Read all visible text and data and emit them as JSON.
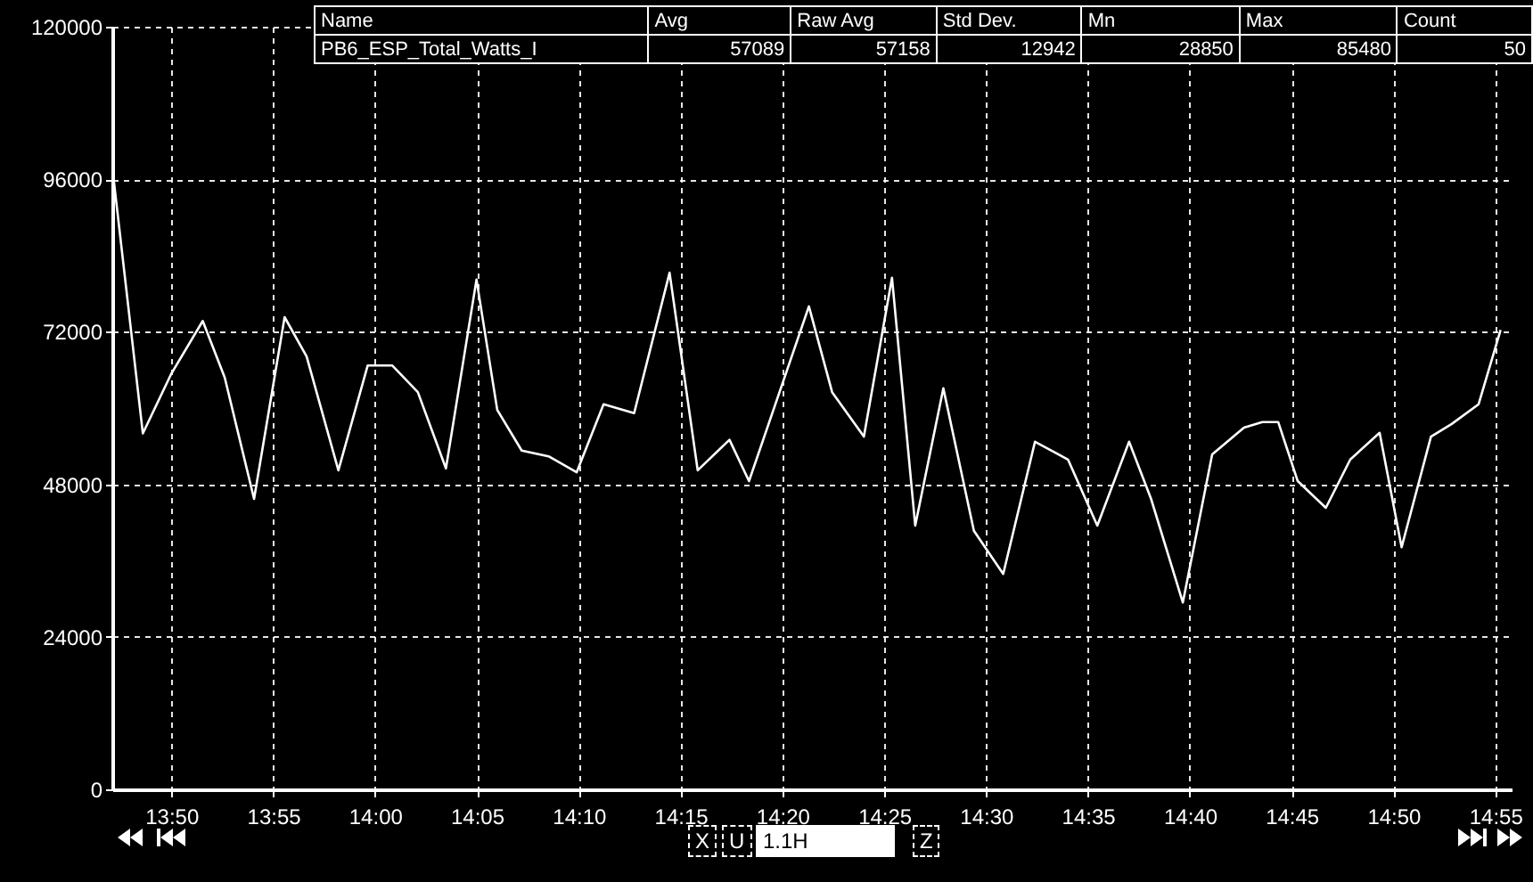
{
  "chart_data": {
    "type": "line",
    "x": [
      13.786,
      13.81,
      13.833,
      13.859,
      13.877,
      13.901,
      13.926,
      13.944,
      13.97,
      13.994,
      14.014,
      14.035,
      14.058,
      14.083,
      14.1,
      14.12,
      14.142,
      14.165,
      14.187,
      14.212,
      14.241,
      14.264,
      14.29,
      14.306,
      14.355,
      14.374,
      14.4,
      14.423,
      14.442,
      14.465,
      14.49,
      14.514,
      14.54,
      14.567,
      14.591,
      14.617,
      14.635,
      14.661,
      14.685,
      14.711,
      14.726,
      14.739,
      14.755,
      14.778,
      14.798,
      14.822,
      14.84,
      14.864,
      14.881,
      14.903,
      14.921
    ],
    "series": [
      {
        "color": "#ffffff",
        "values": [
          96200,
          56000,
          65300,
          73700,
          64800,
          45700,
          74300,
          68100,
          50200,
          66700,
          66700,
          62500,
          50500,
          80200,
          59700,
          53300,
          52400,
          49900,
          60600,
          59200,
          81300,
          50200,
          55000,
          48500,
          76000,
          62500,
          55500,
          80500,
          41500,
          63100,
          40700,
          33900,
          54700,
          51900,
          41500,
          54700,
          45700,
          29400,
          52700,
          56900,
          57800,
          57800,
          48500,
          44300,
          51900,
          56100,
          38100,
          55500,
          57500,
          60600,
          72300
        ]
      }
    ],
    "xlim": [
      13.785,
      14.93
    ],
    "xticks": [
      {
        "value": 13.8333,
        "label": "13:50"
      },
      {
        "value": 13.9167,
        "label": "13:55"
      },
      {
        "value": 14.0,
        "label": "14:00"
      },
      {
        "value": 14.0833,
        "label": "14:05"
      },
      {
        "value": 14.1667,
        "label": "14:10"
      },
      {
        "value": 14.25,
        "label": "14:15"
      },
      {
        "value": 14.3333,
        "label": "14:20"
      },
      {
        "value": 14.4167,
        "label": "14:25"
      },
      {
        "value": 14.5,
        "label": "14:30"
      },
      {
        "value": 14.5833,
        "label": "14:35"
      },
      {
        "value": 14.6667,
        "label": "14:40"
      },
      {
        "value": 14.75,
        "label": "14:45"
      },
      {
        "value": 14.8333,
        "label": "14:50"
      },
      {
        "value": 14.9167,
        "label": "14:55"
      }
    ],
    "ylim": [
      0,
      120000
    ],
    "yticks": [
      0,
      24000,
      48000,
      72000,
      96000,
      120000
    ],
    "grid": true,
    "line_style": "solid",
    "annotations": [
      "Name",
      "Avg",
      "Raw Avg",
      "Std Dev.",
      "Mn",
      "Max",
      "Count",
      "PB6_ESP_Total_Watts_I",
      "57089",
      "57158",
      "12942",
      "28850",
      "85480",
      "50",
      "X",
      "U",
      "1.1H",
      "Z"
    ]
  }
}
